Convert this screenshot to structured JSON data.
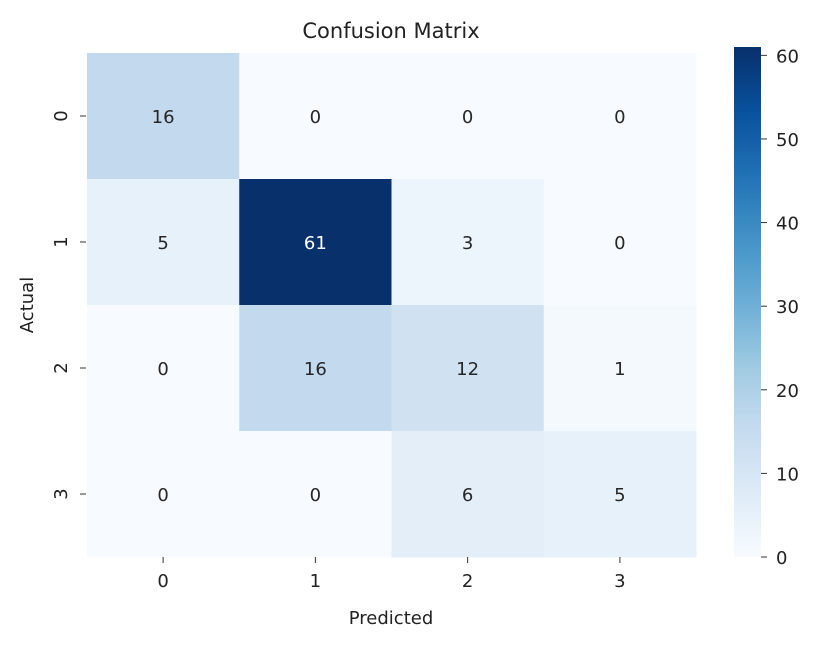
{
  "chart_data": {
    "type": "heatmap",
    "title": "Confusion Matrix",
    "xlabel": "Predicted",
    "ylabel": "Actual",
    "x_categories": [
      "0",
      "1",
      "2",
      "3"
    ],
    "y_categories": [
      "0",
      "1",
      "2",
      "3"
    ],
    "values": [
      [
        16,
        0,
        0,
        0
      ],
      [
        5,
        61,
        3,
        0
      ],
      [
        0,
        16,
        12,
        1
      ],
      [
        0,
        0,
        6,
        5
      ]
    ],
    "colormap": "Blues",
    "colormap_stops": [
      "#f7fbff",
      "#deebf7",
      "#c6dbef",
      "#9ecae1",
      "#6baed6",
      "#4292c6",
      "#2171b5",
      "#08519c",
      "#08306b"
    ],
    "vmin": 0,
    "vmax": 61,
    "colorbar_ticks": [
      0,
      10,
      20,
      30,
      40,
      50,
      60
    ],
    "annotated": true
  }
}
